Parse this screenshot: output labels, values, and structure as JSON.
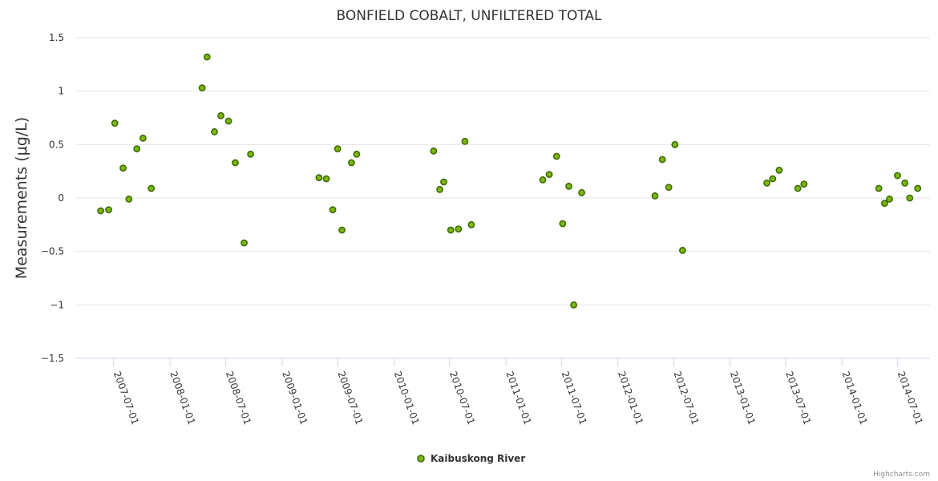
{
  "chart_data": {
    "type": "scatter",
    "title": "BONFIELD COBALT, UNFILTERED TOTAL",
    "ylabel": "Measurements (μg/L)",
    "xlabel": "",
    "ylim": [
      -1.5,
      1.5
    ],
    "yticks": [
      1.5,
      1,
      0.5,
      0,
      -0.5,
      -1,
      -1.5
    ],
    "ytick_labels": [
      "1.5",
      "1",
      "0.5",
      "0",
      "−0.5",
      "−1",
      "−1.5"
    ],
    "xlim": [
      "2007-03-01",
      "2014-10-15"
    ],
    "xticks": [
      "2007-07-01",
      "2008-01-01",
      "2008-07-01",
      "2009-01-01",
      "2009-07-01",
      "2010-01-01",
      "2010-07-01",
      "2011-01-01",
      "2011-07-01",
      "2012-01-01",
      "2012-07-01",
      "2013-01-01",
      "2013-07-01",
      "2014-01-01",
      "2014-07-01"
    ],
    "grid": true,
    "legend_position": "bottom-center",
    "colors": {
      "point_fill": "#7cb80e",
      "point_stroke": "#3e6b00",
      "grid": "#e6e6e6",
      "axis": "#ccd6eb"
    },
    "series": [
      {
        "name": "Kaibuskong River",
        "points": [
          {
            "x": "2007-05-20",
            "y": -0.12
          },
          {
            "x": "2007-06-15",
            "y": -0.11
          },
          {
            "x": "2007-07-05",
            "y": 0.7
          },
          {
            "x": "2007-08-01",
            "y": 0.28
          },
          {
            "x": "2007-08-20",
            "y": -0.01
          },
          {
            "x": "2007-09-15",
            "y": 0.46
          },
          {
            "x": "2007-10-05",
            "y": 0.56
          },
          {
            "x": "2007-11-01",
            "y": 0.09
          },
          {
            "x": "2008-04-15",
            "y": 1.03
          },
          {
            "x": "2008-05-01",
            "y": 1.32
          },
          {
            "x": "2008-05-25",
            "y": 0.62
          },
          {
            "x": "2008-06-15",
            "y": 0.77
          },
          {
            "x": "2008-07-10",
            "y": 0.72
          },
          {
            "x": "2008-08-01",
            "y": 0.33
          },
          {
            "x": "2008-08-30",
            "y": -0.42
          },
          {
            "x": "2008-09-20",
            "y": 0.41
          },
          {
            "x": "2009-05-01",
            "y": 0.19
          },
          {
            "x": "2009-05-25",
            "y": 0.18
          },
          {
            "x": "2009-06-15",
            "y": -0.11
          },
          {
            "x": "2009-07-01",
            "y": 0.46
          },
          {
            "x": "2009-07-15",
            "y": -0.3
          },
          {
            "x": "2009-08-15",
            "y": 0.33
          },
          {
            "x": "2009-09-01",
            "y": 0.41
          },
          {
            "x": "2010-05-10",
            "y": 0.44
          },
          {
            "x": "2010-05-30",
            "y": 0.08
          },
          {
            "x": "2010-06-12",
            "y": 0.15
          },
          {
            "x": "2010-07-05",
            "y": -0.3
          },
          {
            "x": "2010-07-30",
            "y": -0.29
          },
          {
            "x": "2010-08-20",
            "y": 0.53
          },
          {
            "x": "2010-09-10",
            "y": -0.25
          },
          {
            "x": "2011-05-01",
            "y": 0.17
          },
          {
            "x": "2011-05-22",
            "y": 0.22
          },
          {
            "x": "2011-06-15",
            "y": 0.39
          },
          {
            "x": "2011-07-05",
            "y": -0.24
          },
          {
            "x": "2011-07-25",
            "y": 0.11
          },
          {
            "x": "2011-08-10",
            "y": -1.0
          },
          {
            "x": "2011-09-05",
            "y": 0.05
          },
          {
            "x": "2012-05-01",
            "y": 0.02
          },
          {
            "x": "2012-05-25",
            "y": 0.36
          },
          {
            "x": "2012-06-15",
            "y": 0.1
          },
          {
            "x": "2012-07-05",
            "y": 0.5
          },
          {
            "x": "2012-07-30",
            "y": -0.49
          },
          {
            "x": "2013-05-01",
            "y": 0.14
          },
          {
            "x": "2013-05-20",
            "y": 0.18
          },
          {
            "x": "2013-06-10",
            "y": 0.26
          },
          {
            "x": "2013-08-10",
            "y": 0.09
          },
          {
            "x": "2013-08-30",
            "y": 0.13
          },
          {
            "x": "2014-05-01",
            "y": 0.09
          },
          {
            "x": "2014-05-20",
            "y": -0.05
          },
          {
            "x": "2014-06-05",
            "y": -0.01
          },
          {
            "x": "2014-07-01",
            "y": 0.21
          },
          {
            "x": "2014-07-25",
            "y": 0.14
          },
          {
            "x": "2014-08-10",
            "y": 0.0
          },
          {
            "x": "2014-09-05",
            "y": 0.09
          }
        ]
      }
    ],
    "credit": "Highcharts.com"
  }
}
